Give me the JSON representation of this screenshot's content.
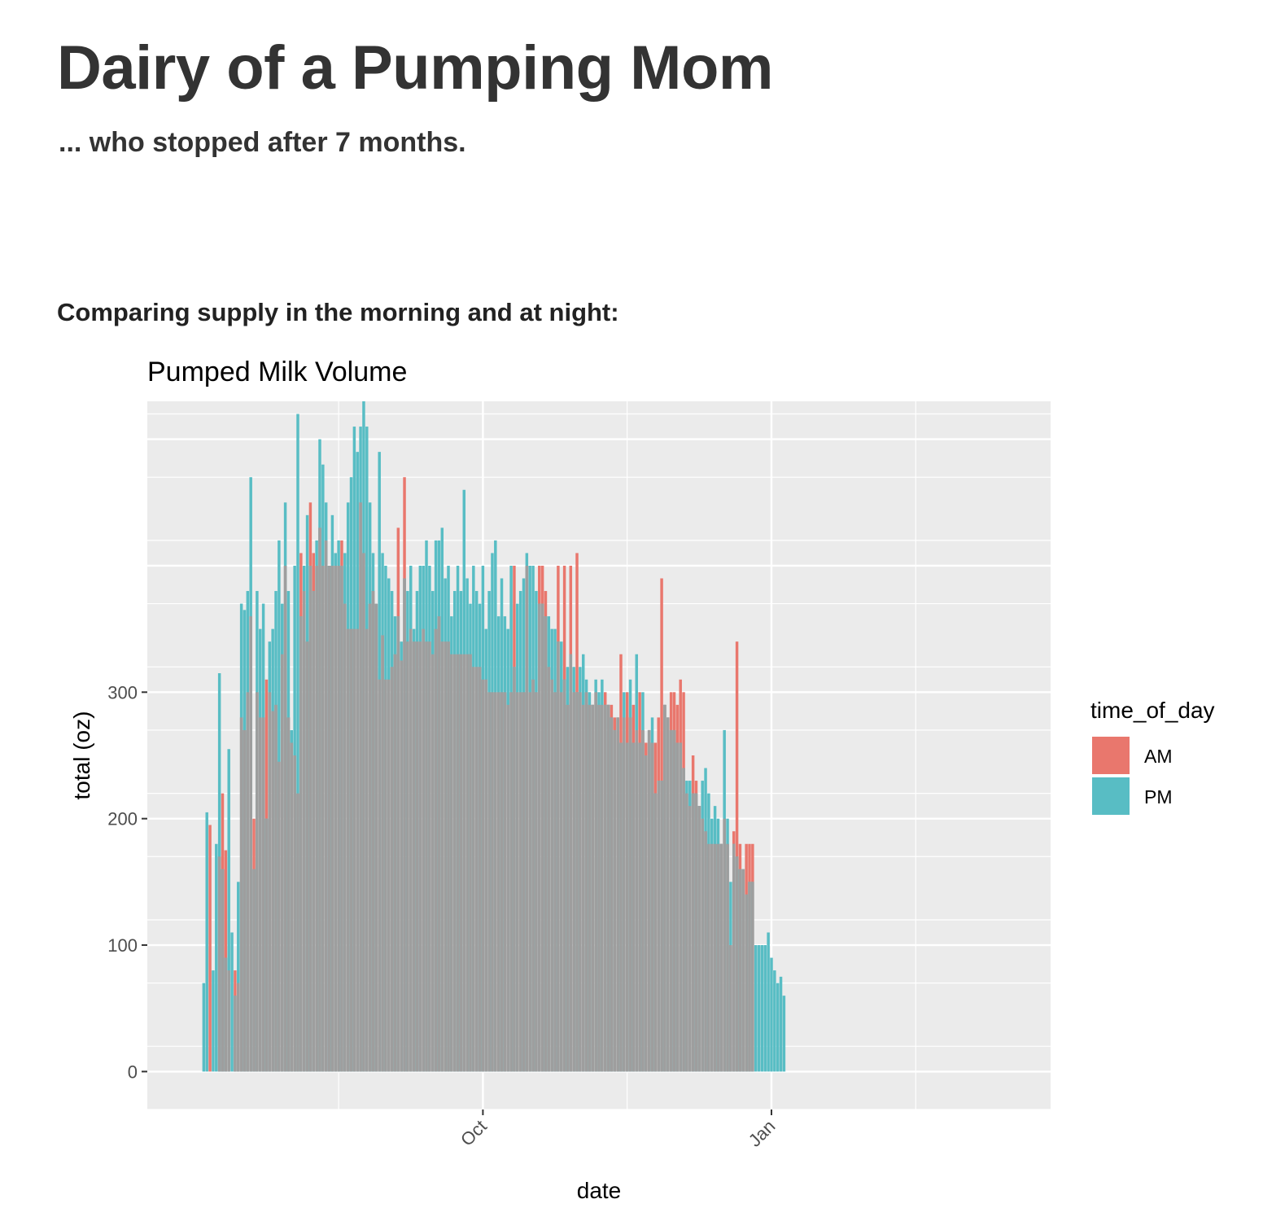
{
  "page": {
    "title": "Dairy of a Pumping Mom",
    "subtitle": "... who stopped after 7 months.",
    "section_intro": "Comparing supply in the morning and at night:"
  },
  "colors": {
    "panel_background": "#EBEBEB",
    "grid": "#FFFFFF",
    "am": "#E9776D",
    "pm": "#58BDC4",
    "overlap": "#9E9E9E",
    "axis_text": "#4D4D4D"
  },
  "chart_data": {
    "type": "bar",
    "subtype": "overlapping-daily-bars",
    "title": "Pumped Milk Volume",
    "xlabel": "date",
    "ylabel": "total (oz)",
    "legend": {
      "title": "time_of_day",
      "entries": [
        "AM",
        "PM"
      ],
      "position": "right"
    },
    "grid": true,
    "x_axis": {
      "type": "date",
      "range": [
        "2017-06-16",
        "2018-03-31"
      ],
      "ticks": [
        {
          "date": "2017-10-01",
          "label": "Oct"
        },
        {
          "date": "2018-01-01",
          "label": "Jan"
        }
      ]
    },
    "ylim": [
      -30,
      530
    ],
    "yticks": [
      0,
      100,
      200,
      300
    ],
    "series_start": "2017-07-04",
    "series": [
      {
        "name": "AM",
        "values": [
          null,
          null,
          195,
          null,
          null,
          170,
          220,
          175,
          80,
          null,
          80,
          70,
          280,
          270,
          300,
          360,
          200,
          300,
          280,
          280,
          310,
          300,
          285,
          290,
          245,
          330,
          400,
          280,
          260,
          250,
          220,
          410,
          380,
          340,
          450,
          410,
          400,
          430,
          400,
          420,
          400,
          400,
          400,
          400,
          420,
          370,
          350,
          350,
          350,
          350,
          450,
          410,
          350,
          370,
          380,
          370,
          310,
          345,
          310,
          310,
          320,
          330,
          430,
          325,
          470,
          340,
          350,
          340,
          340,
          340,
          350,
          340,
          340,
          330,
          350,
          360,
          340,
          340,
          340,
          330,
          330,
          330,
          330,
          330,
          330,
          330,
          320,
          320,
          320,
          310,
          310,
          300,
          300,
          300,
          300,
          300,
          300,
          290,
          300,
          400,
          300,
          300,
          300,
          400,
          300,
          310,
          300,
          400,
          400,
          380,
          320,
          310,
          300,
          400,
          300,
          400,
          290,
          400,
          300,
          410,
          300,
          290,
          300,
          290,
          290,
          300,
          290,
          290,
          300,
          290,
          290,
          280,
          280,
          330,
          280,
          300,
          280,
          290,
          270,
          300,
          270,
          260,
          270,
          260,
          260,
          280,
          390,
          290,
          280,
          300,
          300,
          290,
          310,
          300,
          220,
          210,
          250,
          230,
          210,
          200,
          190,
          180,
          180,
          180,
          180,
          180,
          200,
          180,
          100,
          190,
          340,
          180,
          160,
          180,
          180,
          180,
          null,
          null,
          null,
          null,
          null,
          null,
          null,
          null,
          null,
          null,
          null,
          null,
          null,
          null,
          null
        ]
      },
      {
        "name": "PM",
        "values": [
          70,
          205,
          null,
          80,
          180,
          315,
          160,
          90,
          255,
          110,
          60,
          150,
          370,
          365,
          380,
          470,
          160,
          380,
          350,
          370,
          200,
          340,
          350,
          380,
          420,
          370,
          450,
          380,
          270,
          400,
          520,
          360,
          400,
          440,
          400,
          380,
          420,
          500,
          480,
          450,
          400,
          440,
          410,
          420,
          400,
          410,
          450,
          470,
          510,
          490,
          510,
          530,
          510,
          450,
          410,
          370,
          490,
          410,
          400,
          390,
          380,
          360,
          360,
          340,
          390,
          380,
          400,
          350,
          380,
          400,
          400,
          420,
          400,
          380,
          420,
          420,
          430,
          390,
          400,
          360,
          380,
          400,
          380,
          460,
          390,
          370,
          400,
          380,
          370,
          400,
          350,
          380,
          410,
          420,
          360,
          390,
          360,
          350,
          400,
          320,
          370,
          380,
          390,
          410,
          400,
          400,
          380,
          370,
          370,
          360,
          360,
          350,
          350,
          340,
          340,
          310,
          320,
          330,
          320,
          300,
          320,
          330,
          310,
          300,
          290,
          310,
          300,
          310,
          290,
          290,
          280,
          270,
          280,
          260,
          300,
          260,
          310,
          260,
          330,
          260,
          300,
          250,
          270,
          280,
          220,
          230,
          230,
          290,
          280,
          270,
          270,
          260,
          260,
          240,
          230,
          230,
          220,
          220,
          210,
          230,
          240,
          220,
          200,
          210,
          200,
          180,
          270,
          200,
          150,
          180,
          170,
          160,
          160,
          140,
          150,
          150,
          100,
          100,
          100,
          100,
          110,
          90,
          80,
          70,
          75,
          60
        ]
      }
    ]
  }
}
